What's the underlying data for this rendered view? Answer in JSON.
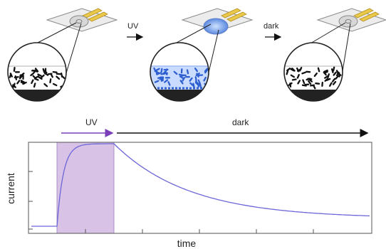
{
  "top_panel": {
    "step_labels": [
      "UV",
      "dark"
    ]
  },
  "plot": {
    "phase_labels": {
      "uv": "UV",
      "dark": "dark"
    },
    "xlabel": "time",
    "ylabel": "current",
    "colors": {
      "uv_fill": "#d8c3e6",
      "curve": "#6d66d8",
      "uv_arrow": "#7a3fb8",
      "dark_arrow": "#111111"
    }
  }
}
